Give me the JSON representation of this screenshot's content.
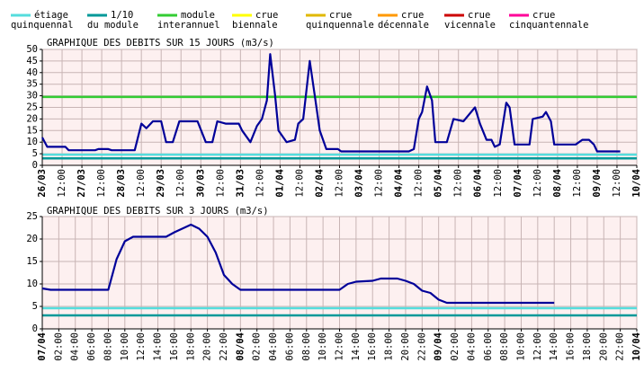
{
  "legend": [
    {
      "lines": [
        "étiage",
        "quinquennal"
      ],
      "color": "#55dddd",
      "value": 4.6
    },
    {
      "lines": [
        "1/10",
        "du module"
      ],
      "color": "#009999",
      "value": 3.0
    },
    {
      "lines": [
        "module",
        "interannuel"
      ],
      "color": "#33cc33",
      "value": 29.5
    },
    {
      "lines": [
        "crue",
        "biennale"
      ],
      "color": "#ffff00"
    },
    {
      "lines": [
        "crue",
        "quinquennale"
      ],
      "color": "#e0b800"
    },
    {
      "lines": [
        "crue",
        "décennale"
      ],
      "color": "#ff9900"
    },
    {
      "lines": [
        "crue",
        "vicennale"
      ],
      "color": "#cc0000"
    },
    {
      "lines": [
        "crue",
        "cinquantennale"
      ],
      "color": "#ff0099"
    }
  ],
  "chart_data": [
    {
      "type": "line",
      "title": "GRAPHIQUE DES DEBITS SUR 15 JOURS (m3/s)",
      "xlim": [
        "26/03 00:00",
        "10/04 00:00"
      ],
      "ylim": [
        0,
        50
      ],
      "yticks": [
        0,
        5,
        10,
        15,
        20,
        25,
        30,
        35,
        40,
        45,
        50
      ],
      "grid": true,
      "xticks": [
        {
          "value": "26/03 00:00",
          "label": "26/03"
        },
        {
          "value": "26/03 12:00",
          "label": "12:00"
        },
        {
          "value": "27/03 00:00",
          "label": "27/03"
        },
        {
          "value": "27/03 12:00",
          "label": "12:00"
        },
        {
          "value": "28/03 00:00",
          "label": "28/03"
        },
        {
          "value": "28/03 12:00",
          "label": "12:00"
        },
        {
          "value": "29/03 00:00",
          "label": "29/03"
        },
        {
          "value": "29/03 12:00",
          "label": "12:00"
        },
        {
          "value": "30/03 00:00",
          "label": "30/03"
        },
        {
          "value": "30/03 12:00",
          "label": "12:00"
        },
        {
          "value": "31/03 00:00",
          "label": "31/03"
        },
        {
          "value": "31/03 12:00",
          "label": "12:00"
        },
        {
          "value": "01/04 00:00",
          "label": "01/04"
        },
        {
          "value": "01/04 12:00",
          "label": "12:00"
        },
        {
          "value": "02/04 00:00",
          "label": "02/04"
        },
        {
          "value": "02/04 12:00",
          "label": "12:00"
        },
        {
          "value": "03/04 00:00",
          "label": "03/04"
        },
        {
          "value": "03/04 12:00",
          "label": "12:00"
        },
        {
          "value": "04/04 00:00",
          "label": "04/04"
        },
        {
          "value": "04/04 12:00",
          "label": "12:00"
        },
        {
          "value": "05/04 00:00",
          "label": "05/04"
        },
        {
          "value": "05/04 12:00",
          "label": "12:00"
        },
        {
          "value": "06/04 00:00",
          "label": "06/04"
        },
        {
          "value": "06/04 12:00",
          "label": "12:00"
        },
        {
          "value": "07/04 00:00",
          "label": "07/04"
        },
        {
          "value": "07/04 12:00",
          "label": "12:00"
        },
        {
          "value": "08/04 00:00",
          "label": "08/04"
        },
        {
          "value": "08/04 12:00",
          "label": "12:00"
        },
        {
          "value": "09/04 00:00",
          "label": "09/04"
        },
        {
          "value": "09/04 12:00",
          "label": "12:00"
        },
        {
          "value": "10/04 00:00",
          "label": "10/04"
        }
      ],
      "series": [
        {
          "color": "#000099",
          "x": [
            "26/03 00:00",
            "26/03 03:00",
            "26/03 14:00",
            "26/03 16:00",
            "27/03 08:00",
            "27/03 10:00",
            "27/03 16:00",
            "27/03 18:00",
            "28/03 08:00",
            "28/03 12:00",
            "28/03 15:00",
            "28/03 19:00",
            "29/03 00:00",
            "29/03 03:00",
            "29/03 07:00",
            "29/03 11:00",
            "29/03 22:00",
            "30/03 03:00",
            "30/03 07:00",
            "30/03 10:00",
            "30/03 15:00",
            "30/03 23:00",
            "31/03 01:00",
            "31/03 06:00",
            "31/03 10:00",
            "31/03 13:00",
            "31/03 16:00",
            "31/03 18:00",
            "31/03 21:00",
            "31/03 23:00",
            "01/04 04:00",
            "01/04 09:00",
            "01/04 11:00",
            "01/04 14:00",
            "01/04 18:00",
            "01/04 21:00",
            "02/04 00:00",
            "02/04 04:00",
            "02/04 11:00",
            "02/04 13:00",
            "04/04 06:00",
            "04/04 09:00",
            "04/04 12:00",
            "04/04 14:00",
            "04/04 17:00",
            "04/04 20:00",
            "04/04 22:00",
            "05/04 05:00",
            "05/04 09:00",
            "05/04 15:00",
            "05/04 22:00",
            "06/04 01:00",
            "06/04 05:00",
            "06/04 08:00",
            "06/04 10:00",
            "06/04 13:00",
            "06/04 17:00",
            "06/04 19:00",
            "06/04 22:00",
            "07/04 07:00",
            "07/04 09:00",
            "07/04 15:00",
            "07/04 17:00",
            "07/04 20:00",
            "07/04 22:00",
            "08/04 11:00",
            "08/04 15:00",
            "08/04 19:00",
            "08/04 22:00",
            "09/04 00:00",
            "09/04 14:00"
          ],
          "values": [
            12,
            8,
            8,
            6.5,
            6.5,
            7,
            7,
            6.5,
            6.5,
            18,
            16,
            19,
            19,
            10,
            10,
            19,
            19,
            10,
            10,
            19,
            18,
            18,
            15,
            10,
            17,
            20,
            28,
            48,
            30,
            15,
            10,
            11,
            18,
            20,
            45,
            30,
            15,
            7,
            7,
            6,
            6,
            7,
            20,
            23,
            34,
            28,
            10,
            10,
            20,
            19,
            25,
            18,
            11,
            11,
            8,
            9,
            27,
            25,
            9,
            9,
            20,
            21,
            23,
            19,
            9,
            9,
            11,
            11,
            9,
            6,
            6
          ]
        }
      ]
    },
    {
      "type": "line",
      "title": "GRAPHIQUE DES DEBITS SUR 3 JOURS (m3/s)",
      "xlim": [
        "07/04 00:00",
        "10/04 00:00"
      ],
      "ylim": [
        0,
        25
      ],
      "yticks": [
        0,
        5,
        10,
        15,
        20,
        25
      ],
      "grid": true,
      "xticks": [
        {
          "value": "07/04 00:00",
          "label": "07/04"
        },
        {
          "value": "07/04 02:00",
          "label": "02:00"
        },
        {
          "value": "07/04 04:00",
          "label": "04:00"
        },
        {
          "value": "07/04 06:00",
          "label": "06:00"
        },
        {
          "value": "07/04 08:00",
          "label": "08:00"
        },
        {
          "value": "07/04 10:00",
          "label": "10:00"
        },
        {
          "value": "07/04 12:00",
          "label": "12:00"
        },
        {
          "value": "07/04 14:00",
          "label": "14:00"
        },
        {
          "value": "07/04 16:00",
          "label": "16:00"
        },
        {
          "value": "07/04 18:00",
          "label": "18:00"
        },
        {
          "value": "07/04 20:00",
          "label": "20:00"
        },
        {
          "value": "07/04 22:00",
          "label": "22:00"
        },
        {
          "value": "08/04 00:00",
          "label": "08/04"
        },
        {
          "value": "08/04 02:00",
          "label": "02:00"
        },
        {
          "value": "08/04 04:00",
          "label": "04:00"
        },
        {
          "value": "08/04 06:00",
          "label": "06:00"
        },
        {
          "value": "08/04 08:00",
          "label": "08:00"
        },
        {
          "value": "08/04 10:00",
          "label": "10:00"
        },
        {
          "value": "08/04 12:00",
          "label": "12:00"
        },
        {
          "value": "08/04 14:00",
          "label": "14:00"
        },
        {
          "value": "08/04 16:00",
          "label": "16:00"
        },
        {
          "value": "08/04 18:00",
          "label": "18:00"
        },
        {
          "value": "08/04 20:00",
          "label": "20:00"
        },
        {
          "value": "08/04 22:00",
          "label": "22:00"
        },
        {
          "value": "09/04 00:00",
          "label": "09/04"
        },
        {
          "value": "09/04 02:00",
          "label": "02:00"
        },
        {
          "value": "09/04 04:00",
          "label": "04:00"
        },
        {
          "value": "09/04 06:00",
          "label": "06:00"
        },
        {
          "value": "09/04 08:00",
          "label": "08:00"
        },
        {
          "value": "09/04 10:00",
          "label": "10:00"
        },
        {
          "value": "09/04 12:00",
          "label": "12:00"
        },
        {
          "value": "09/04 14:00",
          "label": "14:00"
        },
        {
          "value": "09/04 16:00",
          "label": "16:00"
        },
        {
          "value": "09/04 18:00",
          "label": "18:00"
        },
        {
          "value": "09/04 20:00",
          "label": "20:00"
        },
        {
          "value": "09/04 22:00",
          "label": "22:00"
        },
        {
          "value": "10/04 00:00",
          "label": "10/04"
        }
      ],
      "series": [
        {
          "color": "#000099",
          "x": [
            "07/04 00:00",
            "07/04 01:00",
            "07/04 08:00",
            "07/04 09:00",
            "07/04 10:00",
            "07/04 11:00",
            "07/04 15:00",
            "07/04 16:00",
            "07/04 18:00",
            "07/04 19:00",
            "07/04 20:00",
            "07/04 21:00",
            "07/04 22:00",
            "07/04 23:00",
            "08/04 00:00",
            "08/04 12:00",
            "08/04 13:00",
            "08/04 14:00",
            "08/04 16:00",
            "08/04 17:00",
            "08/04 19:00",
            "08/04 20:00",
            "08/04 21:00",
            "08/04 22:00",
            "08/04 23:00",
            "09/04 00:00",
            "09/04 01:00",
            "09/04 14:00"
          ],
          "values": [
            9,
            8.7,
            8.7,
            15.5,
            19.5,
            20.5,
            20.5,
            21.5,
            23.2,
            22.3,
            20.5,
            17,
            12,
            10,
            8.7,
            8.7,
            10,
            10.5,
            10.7,
            11.2,
            11.2,
            10.7,
            10,
            8.5,
            8,
            6.5,
            5.8,
            5.8
          ]
        }
      ]
    }
  ]
}
